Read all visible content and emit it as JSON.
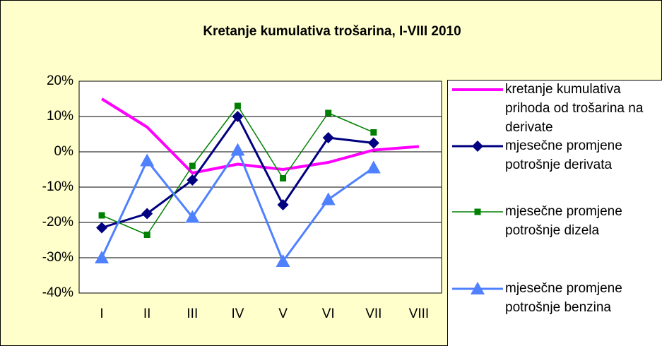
{
  "chart_data": {
    "type": "line",
    "title": "Kretanje kumulativa trošarina, I-VIII 2010",
    "categories": [
      "I",
      "II",
      "III",
      "IV",
      "V",
      "VI",
      "VII",
      "VIII"
    ],
    "series": [
      {
        "name": "kretanje kumulativa prihoda od trošarina na derivate",
        "color": "#ff00ff",
        "marker": "none",
        "values": [
          15,
          7,
          -6,
          -3.5,
          -5,
          -3,
          0.5,
          1.5
        ]
      },
      {
        "name": "mjesečne promjene potrošnje derivata",
        "color": "#000080",
        "marker": "diamond",
        "values": [
          -21.5,
          -17.5,
          -8,
          10,
          -15,
          4,
          2.5,
          null
        ]
      },
      {
        "name": "mjesečne promjene potrošnje dizela",
        "color": "#008000",
        "marker": "square",
        "values": [
          -18,
          -23.5,
          -4,
          13,
          -7.5,
          11,
          5.5,
          null
        ]
      },
      {
        "name": "mjesečne promjene potrošnje benzina",
        "color": "#4f81ff",
        "marker": "triangle",
        "values": [
          -30,
          -2.5,
          -18.5,
          0.5,
          -31,
          -13.5,
          -4.5,
          null
        ]
      }
    ],
    "ylim": [
      -40,
      20
    ],
    "yticks": [
      {
        "value": -40,
        "label": "-40%"
      },
      {
        "value": -30,
        "label": "-30%"
      },
      {
        "value": -20,
        "label": "-20%"
      },
      {
        "value": -10,
        "label": "-10%"
      },
      {
        "value": 0,
        "label": "0%"
      },
      {
        "value": 10,
        "label": "10%"
      },
      {
        "value": 20,
        "label": "20%"
      }
    ],
    "grid": true,
    "legend": "right"
  }
}
